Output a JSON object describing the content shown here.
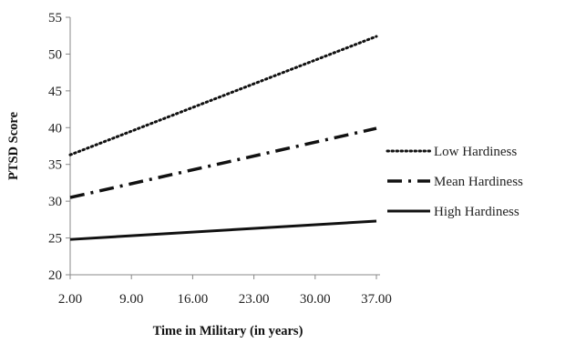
{
  "chart_data": {
    "type": "line",
    "title": "",
    "xlabel": "Time in Military (in years)",
    "ylabel": "PTSD Score",
    "categories": [
      "2.00",
      "9.00",
      "16.00",
      "23.00",
      "30.00",
      "37.00"
    ],
    "x": [
      2,
      37
    ],
    "ylim": [
      20,
      55
    ],
    "yticks": [
      "20",
      "25",
      "30",
      "35",
      "40",
      "45",
      "50",
      "55"
    ],
    "legend_position": "right",
    "grid": false,
    "series": [
      {
        "name": "Low Hardiness",
        "style": "dotted",
        "values": [
          36.3,
          52.4
        ]
      },
      {
        "name": "Mean Hardiness",
        "style": "dash-dot",
        "values": [
          30.5,
          39.9
        ]
      },
      {
        "name": "High Hardiness",
        "style": "solid",
        "values": [
          24.8,
          27.3
        ]
      }
    ],
    "line_color": "#111111",
    "axis_color": "#888888"
  }
}
